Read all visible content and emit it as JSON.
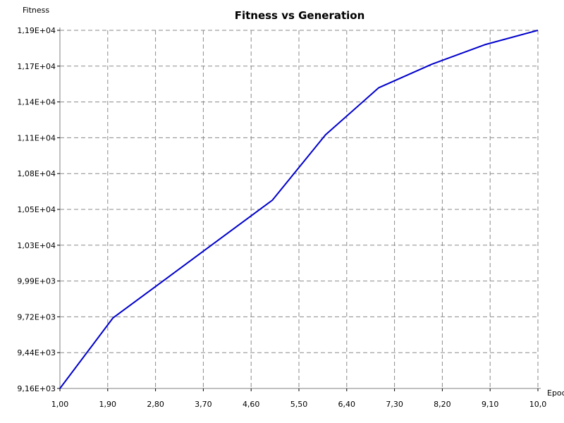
{
  "chart_data": {
    "type": "line",
    "title": "Fitness vs Generation",
    "ylabel": "Fitness",
    "xlabel": "Epoc",
    "xlim": [
      1.0,
      10.0
    ],
    "ylim": [
      9160,
      11900
    ],
    "x_ticks": [
      "1,00",
      "1,90",
      "2,80",
      "3,70",
      "4,60",
      "5,50",
      "6,40",
      "7,30",
      "8,20",
      "9,10",
      "10,0"
    ],
    "y_ticks": [
      "9,16E+03",
      "9,44E+03",
      "9,72E+03",
      "9,99E+03",
      "1,03E+04",
      "1,05E+04",
      "1,08E+04",
      "1,11E+04",
      "1,14E+04",
      "1,17E+04",
      "1,19E+04"
    ],
    "grid": true,
    "series": [
      {
        "x": [
          1,
          2,
          3,
          4,
          5,
          6,
          7,
          8,
          9,
          10
        ],
        "y": [
          9160,
          9700,
          10000,
          10300,
          10600,
          11100,
          11460,
          11640,
          11790,
          11900
        ]
      }
    ],
    "colors": {
      "line": "#0000cc",
      "grid": "#8a8a8a",
      "axis": "#808080"
    }
  }
}
